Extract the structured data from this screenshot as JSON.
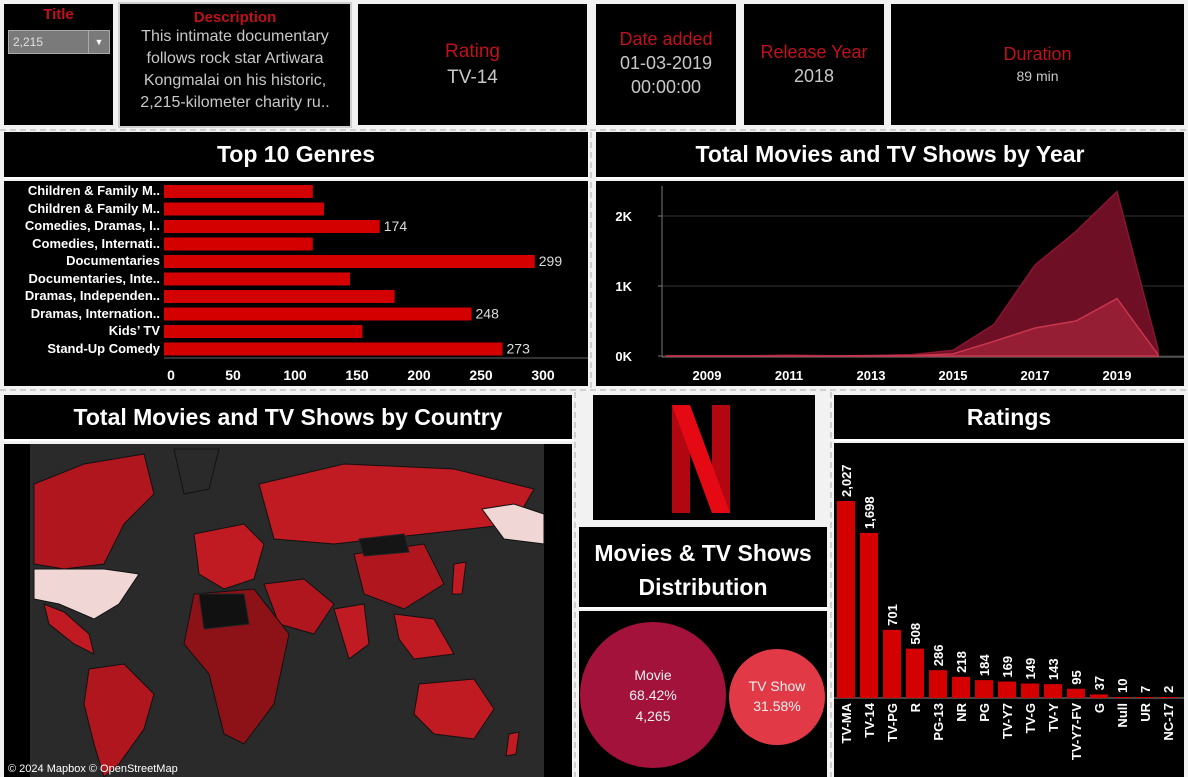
{
  "kpis": {
    "title": {
      "label": "Title",
      "value": "2,215"
    },
    "description": {
      "label": "Description",
      "lines": [
        "This intimate documentary",
        "follows rock star Artiwara",
        "Kongmalai on his historic,",
        "2,215-kilometer charity ru.."
      ]
    },
    "rating": {
      "label": "Rating",
      "value": "TV-14"
    },
    "date_added": {
      "label": "Date added",
      "line1": "01-03-2019",
      "line2": "00:00:00"
    },
    "release_year": {
      "label": "Release Year",
      "value": "2018"
    },
    "duration": {
      "label": "Duration",
      "value": "89 min"
    }
  },
  "map": {
    "title": "Total Movies and TV Shows by Country",
    "attribution": "© 2024 Mapbox © OpenStreetMap"
  },
  "distribution": {
    "title_line1": "Movies & TV Shows",
    "title_line2": "Distribution"
  },
  "colors": {
    "accent": "#e50914",
    "bar": "#d40000",
    "movie": "#a3123a",
    "tvshow": "#e13a46"
  },
  "chart_data": [
    {
      "type": "bar",
      "orientation": "horizontal",
      "title": "Top 10 Genres",
      "categories": [
        "Children & Family M..",
        "Children & Family M..",
        "Comedies, Dramas, I..",
        "Comedies, Internati..",
        "Documentaries",
        "Documentaries, Inte..",
        "Dramas, Independen..",
        "Dramas, Internation..",
        "Kids’ TV",
        "Stand-Up Comedy"
      ],
      "values": [
        120,
        129,
        174,
        120,
        299,
        150,
        186,
        248,
        160,
        273
      ],
      "data_labels": [
        null,
        null,
        "174",
        null,
        "299",
        null,
        null,
        "248",
        null,
        "273"
      ],
      "xlim": [
        0,
        330
      ],
      "xticks": [
        0,
        50,
        100,
        150,
        200,
        250,
        300
      ]
    },
    {
      "type": "area",
      "title": "Total Movies and TV Shows by Year",
      "x": [
        2008,
        2009,
        2010,
        2011,
        2012,
        2013,
        2014,
        2015,
        2016,
        2017,
        2018,
        2019,
        2020
      ],
      "series": [
        {
          "values": [
            2,
            2,
            1,
            13,
            3,
            6,
            19,
            82,
            450,
            1300,
            1780,
            2350,
            100
          ]
        },
        {
          "values": [
            0,
            0,
            0,
            0,
            0,
            5,
            6,
            30,
            210,
            400,
            500,
            820,
            20
          ]
        }
      ],
      "xticks": [
        2009,
        2011,
        2013,
        2015,
        2017,
        2019
      ],
      "yticks": [
        "0K",
        "1K",
        "2K"
      ],
      "ylim": [
        0,
        2500
      ],
      "grid": true
    },
    {
      "type": "bar",
      "title": "Ratings",
      "categories": [
        "TV-MA",
        "TV-14",
        "TV-PG",
        "R",
        "PG-13",
        "NR",
        "PG",
        "TV-Y7",
        "TV-G",
        "TV-Y",
        "TV-Y7-FV",
        "G",
        "Null",
        "UR",
        "NC-17"
      ],
      "values": [
        2027,
        1698,
        701,
        508,
        286,
        218,
        184,
        169,
        149,
        143,
        95,
        37,
        10,
        7,
        2
      ],
      "labels": [
        "2,027",
        "1,698",
        "701",
        "508",
        "286",
        "218",
        "184",
        "169",
        "149",
        "143",
        "95",
        "37",
        "10",
        "7",
        "2"
      ]
    },
    {
      "type": "pie",
      "title": "Movies & TV Shows Distribution",
      "categories": [
        "Movie",
        "TV Show"
      ],
      "values": [
        4265,
        1969
      ],
      "percent_labels": [
        "68.42%",
        "31.58%"
      ],
      "count_labels": [
        "4,265",
        null
      ]
    }
  ]
}
